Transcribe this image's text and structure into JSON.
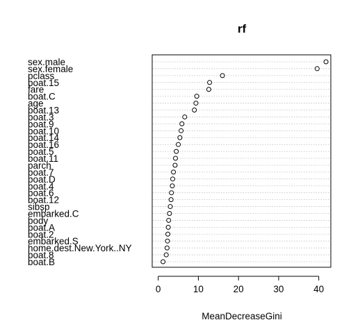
{
  "chart_data": {
    "type": "scatter",
    "style": "dotchart",
    "title": "rf",
    "xlabel": "MeanDecreaseGini",
    "ylabel": "",
    "xlim": [
      -1.5,
      43
    ],
    "xticks": [
      0,
      10,
      20,
      30,
      40
    ],
    "grid": "dotted horizontal lines per row",
    "categories": [
      "sex.male",
      "sex.female",
      "pclass",
      "boat.15",
      "fare",
      "boat.C",
      "age",
      "boat.13",
      "boat.3",
      "boat.9",
      "boat.10",
      "boat.14",
      "boat.16",
      "boat.5",
      "boat.11",
      "parch",
      "boat.7",
      "boat.D",
      "boat.4",
      "boat.6",
      "boat.12",
      "sibsp",
      "embarked.C",
      "body",
      "boat.A",
      "boat.2",
      "embarked.S",
      "home.dest.New.York..NY",
      "boat.8",
      "boat.B"
    ],
    "values": [
      41.8,
      39.6,
      16.0,
      12.8,
      12.6,
      9.6,
      9.4,
      9.0,
      6.6,
      5.9,
      5.7,
      5.4,
      5.0,
      4.5,
      4.3,
      4.2,
      3.8,
      3.6,
      3.5,
      3.3,
      3.2,
      3.0,
      2.8,
      2.6,
      2.5,
      2.4,
      2.3,
      2.2,
      2.0,
      1.2
    ]
  }
}
